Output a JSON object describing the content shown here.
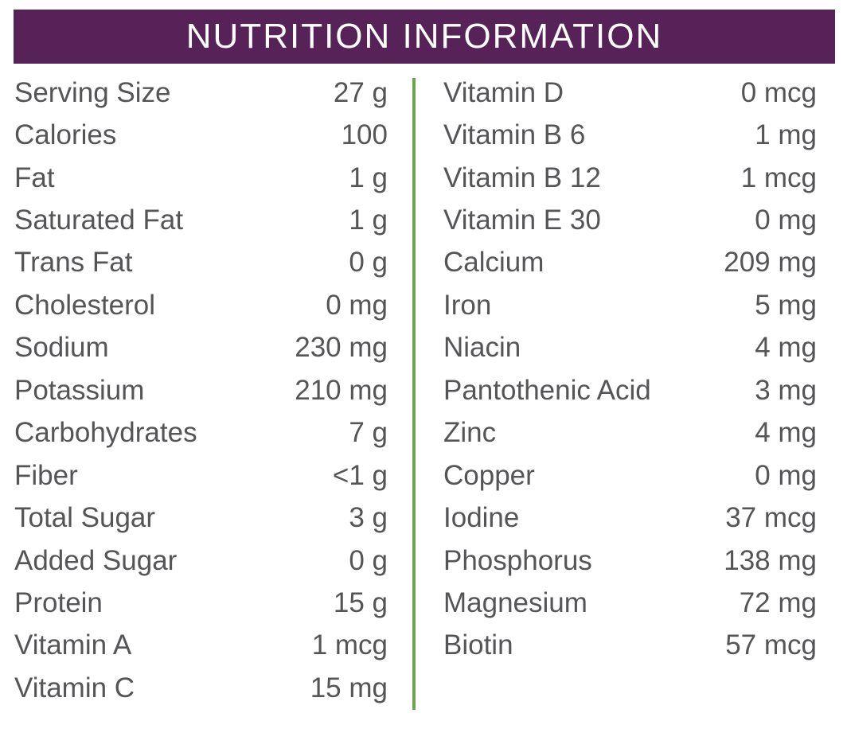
{
  "title": "NUTRITION INFORMATION",
  "left": [
    {
      "name": "Serving Size",
      "value": "27 g"
    },
    {
      "name": "Calories",
      "value": "100"
    },
    {
      "name": "Fat",
      "value": "1 g"
    },
    {
      "name": "Saturated Fat",
      "value": "1 g"
    },
    {
      "name": "Trans Fat",
      "value": "0 g"
    },
    {
      "name": "Cholesterol",
      "value": "0 mg"
    },
    {
      "name": "Sodium",
      "value": "230 mg"
    },
    {
      "name": "Potassium",
      "value": "210 mg"
    },
    {
      "name": "Carbohydrates",
      "value": "7 g"
    },
    {
      "name": "Fiber",
      "value": "<1 g"
    },
    {
      "name": "Total Sugar",
      "value": "3 g"
    },
    {
      "name": "Added Sugar",
      "value": "0 g"
    },
    {
      "name": "Protein",
      "value": "15 g"
    },
    {
      "name": "Vitamin A",
      "value": "1 mcg"
    },
    {
      "name": "Vitamin C",
      "value": "15 mg"
    }
  ],
  "right": [
    {
      "name": "Vitamin D",
      "value": "0 mcg"
    },
    {
      "name": "Vitamin B 6",
      "value": "1 mg"
    },
    {
      "name": "Vitamin B 12",
      "value": "1 mcg"
    },
    {
      "name": "Vitamin E 30",
      "value": "0 mg"
    },
    {
      "name": "Calcium",
      "value": "209 mg"
    },
    {
      "name": "Iron",
      "value": "5 mg"
    },
    {
      "name": "Niacin",
      "value": "4 mg"
    },
    {
      "name": "Pantothenic Acid",
      "value": "3 mg"
    },
    {
      "name": "Zinc",
      "value": "4 mg"
    },
    {
      "name": "Copper",
      "value": "0 mg"
    },
    {
      "name": "Iodine",
      "value": "37 mcg"
    },
    {
      "name": "Phosphorus",
      "value": "138 mg"
    },
    {
      "name": "Magnesium",
      "value": "72 mg"
    },
    {
      "name": "Biotin",
      "value": "57 mcg"
    }
  ],
  "colors": {
    "header": "#562257",
    "divider": "#6ea34f",
    "text": "#555558"
  }
}
